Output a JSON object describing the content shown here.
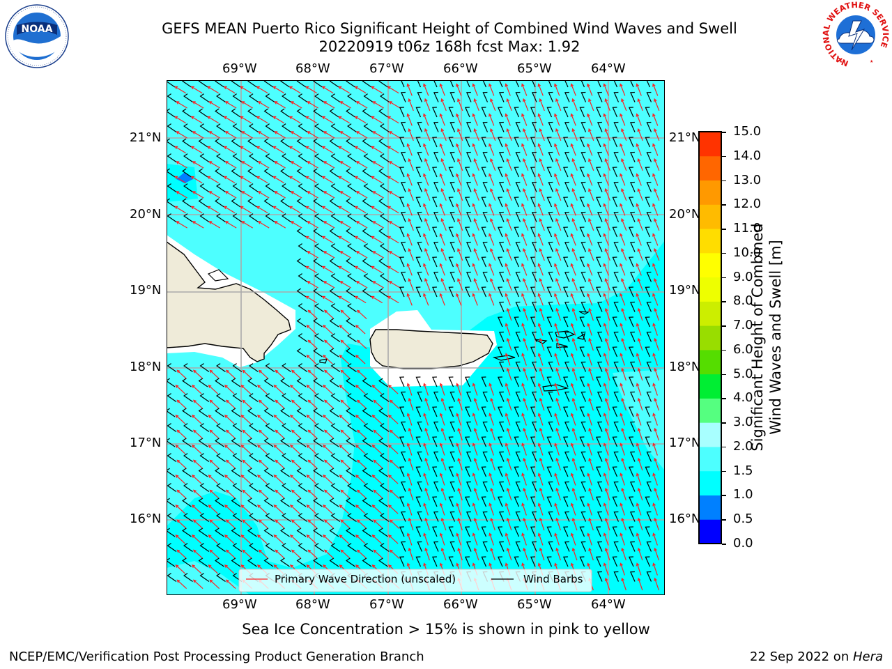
{
  "header": {
    "title_line1": "GEFS MEAN Puerto Rico Significant Height of Combined Wind Waves and Swell",
    "title_line2": "20220919 t06z 168h fcst   Max: 1.92"
  },
  "logos": {
    "left": {
      "text": "NOAA",
      "ring_text": "NATIONAL OCEANIC AND ATMOSPHERIC ADMINISTRATION · U.S. DEPARTMENT OF COMMERCE"
    },
    "right": {
      "ring_text": "NATIONAL WEATHER SERVICE"
    }
  },
  "map": {
    "lon_labels": [
      "69°W",
      "68°W",
      "67°W",
      "66°W",
      "65°W",
      "64°W"
    ],
    "lat_labels": [
      "21°N",
      "20°N",
      "19°N",
      "18°N",
      "17°N",
      "16°N"
    ],
    "colors": {
      "ocean_low": "#00ffff",
      "ocean_mid": "#4dffff",
      "land": "#efebd9",
      "wave_arrow": "#ff2020",
      "barb": "#000000",
      "grid": "#aaaaaa"
    },
    "legend": {
      "wave_label": "Primary Wave Direction (unscaled)",
      "barb_label": "Wind Barbs"
    }
  },
  "colorbar": {
    "label_line1": "Significant Height of Combined",
    "label_line2": "Wind Waves and Swell [m]",
    "ticks": [
      "15.0",
      "14.0",
      "13.0",
      "12.0",
      "11.0",
      "10.0",
      "9.0",
      "8.0",
      "7.0",
      "6.0",
      "5.0",
      "4.0",
      "3.0",
      "2.0",
      "1.5",
      "1.0",
      "0.5",
      "0.0"
    ],
    "colors_bottom_to_top": [
      "#0000ff",
      "#0080ff",
      "#00ffff",
      "#4dffff",
      "#a8ffff",
      "#55ff80",
      "#00ee33",
      "#55dd00",
      "#99dd00",
      "#ccee00",
      "#eeff00",
      "#ffff00",
      "#ffdd00",
      "#ffbb00",
      "#ff9900",
      "#ff6600",
      "#ff3300"
    ]
  },
  "footer": {
    "note": "Sea Ice Concentration > 15% is shown in pink to yellow",
    "left": "NCEP/EMC/Verification Post Processing Product Generation Branch",
    "right_prefix": "22 Sep 2022 on ",
    "right_host": "Hera"
  }
}
